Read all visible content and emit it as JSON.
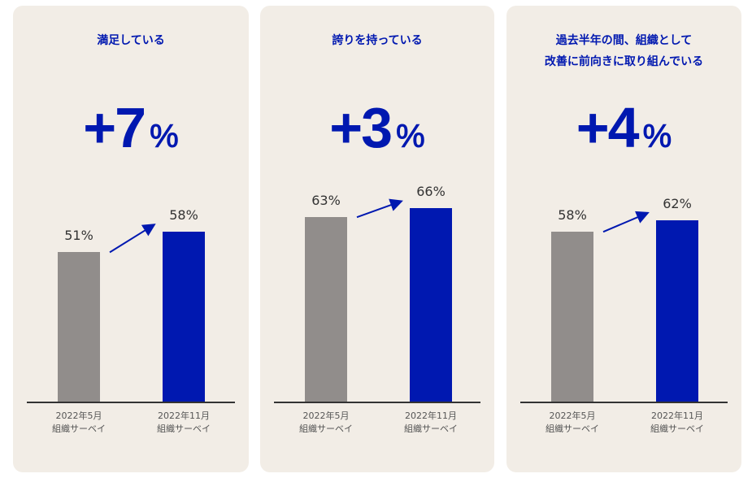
{
  "colors": {
    "before": "#918d8b",
    "after": "#0018b0",
    "text": "#0018b0",
    "bg": "#f2ede6"
  },
  "chart_data": [
    {
      "type": "bar",
      "title": "満足している",
      "delta": "+7",
      "delta_unit": "%",
      "categories": [
        "2022年5月 組織サーベイ",
        "2022年11月 組織サーベイ"
      ],
      "values": [
        51,
        58
      ],
      "labels": [
        "51%",
        "58%"
      ],
      "cat_lines": [
        [
          "2022年5月",
          "組織サーベイ"
        ],
        [
          "2022年11月",
          "組織サーベイ"
        ]
      ]
    },
    {
      "type": "bar",
      "title": "誇りを持っている",
      "delta": "+3",
      "delta_unit": "%",
      "categories": [
        "2022年5月 組織サーベイ",
        "2022年11月 組織サーベイ"
      ],
      "values": [
        63,
        66
      ],
      "labels": [
        "63%",
        "66%"
      ],
      "cat_lines": [
        [
          "2022年5月",
          "組織サーベイ"
        ],
        [
          "2022年11月",
          "組織サーベイ"
        ]
      ]
    },
    {
      "type": "bar",
      "title": "過去半年の間、組織として\n改善に前向きに取り組んでいる",
      "delta": "+4",
      "delta_unit": "%",
      "categories": [
        "2022年5月 組織サーベイ",
        "2022年11月 組織サーベイ"
      ],
      "values": [
        58,
        62
      ],
      "labels": [
        "58%",
        "62%"
      ],
      "cat_lines": [
        [
          "2022年5月",
          "組織サーベイ"
        ],
        [
          "2022年11月",
          "組織サーベイ"
        ]
      ]
    }
  ]
}
